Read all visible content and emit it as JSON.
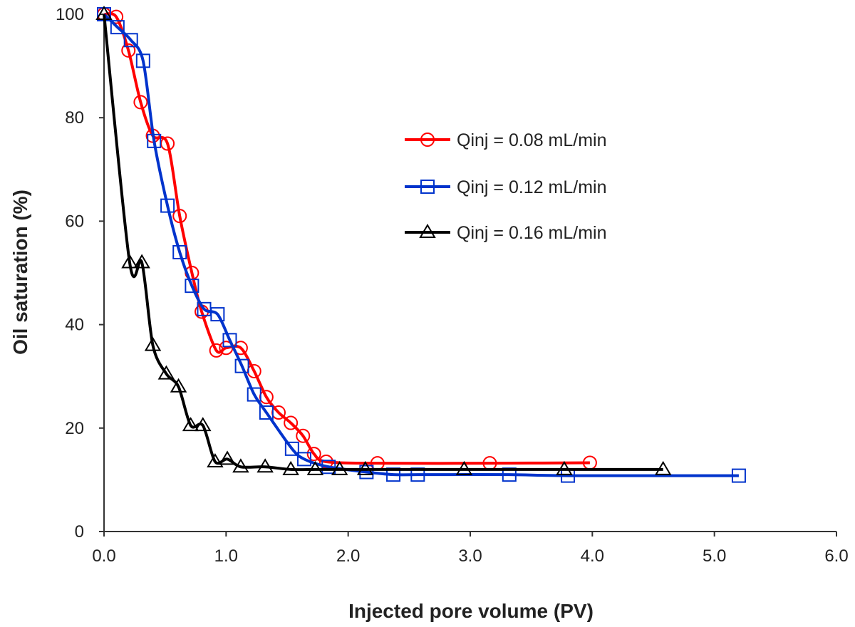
{
  "chart_data": {
    "type": "line",
    "title": "",
    "xlabel": "Injected pore volume (PV)",
    "ylabel": "Oil saturation (%)",
    "xlim": [
      0,
      6
    ],
    "ylim": [
      0,
      100
    ],
    "x_ticks": [
      "0.0",
      "1.0",
      "2.0",
      "3.0",
      "4.0",
      "5.0",
      "6.0"
    ],
    "y_ticks": [
      "0",
      "20",
      "40",
      "60",
      "80",
      "100"
    ],
    "grid": false,
    "legend_position": "top-right",
    "series": [
      {
        "name": "Qinj = 0.08 mL/min",
        "color": "#ff0000",
        "marker": "circle",
        "x": [
          0.0,
          0.1,
          0.2,
          0.3,
          0.4,
          0.52,
          0.62,
          0.72,
          0.8,
          0.92,
          1.0,
          1.12,
          1.23,
          1.33,
          1.43,
          1.53,
          1.63,
          1.72,
          1.82,
          2.24,
          3.16,
          3.98
        ],
        "y": [
          100,
          99.5,
          93,
          83,
          76.5,
          75,
          61,
          50,
          42.5,
          35,
          35.5,
          35.5,
          31,
          26,
          23,
          21,
          18.5,
          15,
          13.5,
          13.2,
          13.2,
          13.3
        ]
      },
      {
        "name": "Qinj = 0.12 mL/min",
        "color": "#0033cc",
        "marker": "square",
        "x": [
          0.0,
          0.11,
          0.22,
          0.32,
          0.41,
          0.52,
          0.62,
          0.72,
          0.82,
          0.93,
          1.03,
          1.13,
          1.23,
          1.33,
          1.54,
          1.64,
          1.84,
          2.15,
          2.37,
          2.57,
          3.32,
          3.8,
          5.2
        ],
        "y": [
          100,
          97.5,
          95,
          91,
          75.5,
          63,
          54,
          47.5,
          43,
          42,
          37,
          32,
          26.5,
          23,
          16,
          14,
          12.5,
          11.5,
          11,
          11,
          11,
          10.8,
          10.8
        ]
      },
      {
        "name": "Qinj = 0.16 mL/min",
        "color": "#000000",
        "marker": "triangle",
        "x": [
          0.0,
          0.21,
          0.31,
          0.4,
          0.51,
          0.61,
          0.71,
          0.81,
          0.91,
          1.01,
          1.12,
          1.32,
          1.53,
          1.73,
          1.93,
          2.14,
          2.95,
          3.77,
          4.58
        ],
        "y": [
          100,
          52,
          52,
          36,
          30.5,
          28,
          20.5,
          20.5,
          13.5,
          14,
          12.5,
          12.5,
          12,
          12,
          12,
          12,
          12,
          12,
          12
        ]
      }
    ]
  }
}
